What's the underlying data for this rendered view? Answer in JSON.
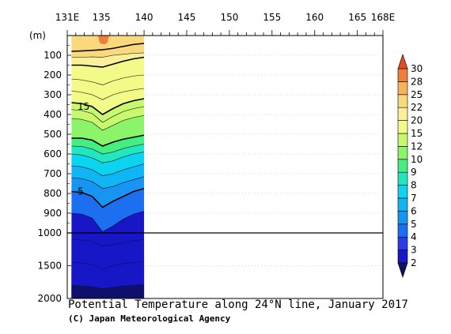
{
  "caption": {
    "title": "Potential Temperature along 24°N line, January 2017",
    "credit": "(C) Japan Meteorological Agency"
  },
  "chart_data": {
    "type": "contour-section",
    "title": "Potential Temperature along 24°N line, January 2017",
    "xlabel": "",
    "ylabel": "(m)",
    "x_ticks": [
      "131E",
      "135",
      "140",
      "145",
      "150",
      "155",
      "160",
      "165",
      "168E"
    ],
    "x_tick_values": [
      131,
      135,
      140,
      145,
      150,
      155,
      160,
      165,
      168
    ],
    "xlim": [
      131,
      168
    ],
    "y_ticks_upper": [
      "100",
      "200",
      "300",
      "400",
      "500",
      "600",
      "700",
      "800",
      "900",
      "1000"
    ],
    "y_ticks_lower": [
      "1500",
      "2000"
    ],
    "y_tick_values_upper": [
      100,
      200,
      300,
      400,
      500,
      600,
      700,
      800,
      900,
      1000
    ],
    "y_tick_values_lower": [
      1500,
      2000
    ],
    "ylim": [
      0,
      2000
    ],
    "axis_break_depth": 1000,
    "data_extent_lon": [
      131.5,
      140
    ],
    "colorbar_levels": [
      "2",
      "3",
      "4",
      "5",
      "6",
      "7",
      "8",
      "9",
      "10",
      "12",
      "15",
      "20",
      "22",
      "25",
      "28",
      "30"
    ],
    "colorbar_colors": [
      "#101060",
      "#1717c8",
      "#2a3ce6",
      "#1c6ff0",
      "#1895f2",
      "#10b6f4",
      "#0ad4f0",
      "#22e6c0",
      "#44ee80",
      "#8cf46a",
      "#c8f86e",
      "#f2fa88",
      "#fbef9a",
      "#f9d97c",
      "#f6b35a",
      "#f07e3a",
      "#e84a28"
    ],
    "contour_labels": [
      {
        "text": "15",
        "lon": 132.2,
        "depth": 360
      },
      {
        "text": "5",
        "lon": 132.2,
        "depth": 790
      }
    ],
    "isotherms": [
      {
        "level": 25,
        "bold": true,
        "depths": [
          80,
          78,
          75,
          72,
          65,
          55,
          45,
          40
        ]
      },
      {
        "level": 22,
        "bold": false,
        "depths": [
          110,
          110,
          108,
          110,
          100,
          95,
          90,
          88
        ]
      },
      {
        "level": 20,
        "bold": true,
        "depths": [
          150,
          150,
          155,
          160,
          145,
          130,
          118,
          110
        ]
      },
      {
        "level": 18,
        "bold": false,
        "depths": [
          220,
          225,
          235,
          250,
          230,
          215,
          205,
          200
        ]
      },
      {
        "level": 16,
        "bold": false,
        "depths": [
          280,
          288,
          300,
          325,
          300,
          285,
          275,
          268
        ]
      },
      {
        "level": 15,
        "bold": true,
        "depths": [
          340,
          345,
          360,
          400,
          370,
          345,
          330,
          320
        ]
      },
      {
        "level": 14,
        "bold": false,
        "depths": [
          375,
          380,
          395,
          440,
          410,
          385,
          370,
          360
        ]
      },
      {
        "level": 12,
        "bold": false,
        "depths": [
          420,
          425,
          440,
          480,
          455,
          430,
          415,
          405
        ]
      },
      {
        "level": 10,
        "bold": true,
        "depths": [
          520,
          520,
          530,
          560,
          540,
          525,
          515,
          505
        ]
      },
      {
        "level": 9,
        "bold": false,
        "depths": [
          560,
          562,
          575,
          600,
          590,
          572,
          560,
          550
        ]
      },
      {
        "level": 8,
        "bold": false,
        "depths": [
          600,
          605,
          620,
          645,
          635,
          615,
          600,
          590
        ]
      },
      {
        "level": 7,
        "bold": false,
        "depths": [
          660,
          665,
          680,
          710,
          700,
          680,
          665,
          650
        ]
      },
      {
        "level": 6,
        "bold": false,
        "depths": [
          720,
          725,
          740,
          775,
          765,
          745,
          730,
          715
        ]
      },
      {
        "level": 5,
        "bold": true,
        "depths": [
          790,
          795,
          815,
          870,
          840,
          815,
          790,
          775
        ]
      },
      {
        "level": 4,
        "bold": false,
        "depths": [
          900,
          905,
          925,
          995,
          965,
          930,
          905,
          890
        ]
      }
    ]
  }
}
